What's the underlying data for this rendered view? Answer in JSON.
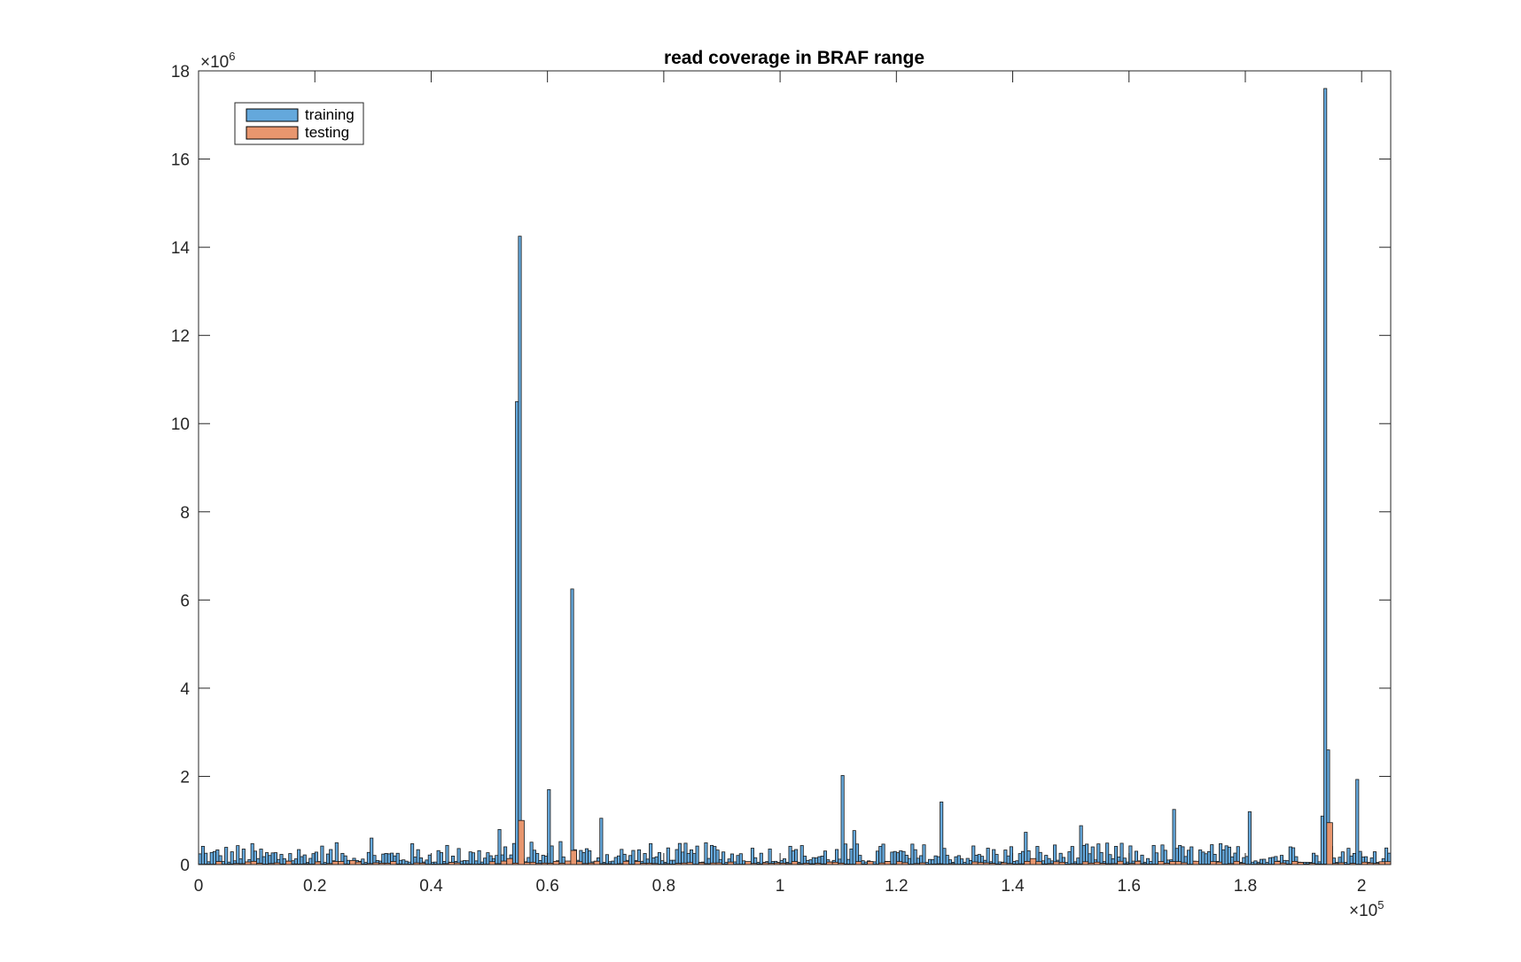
{
  "chart_data": {
    "type": "bar",
    "title": "read coverage in BRAF range",
    "xlabel": "",
    "ylabel": "",
    "x_multiplier": "×10",
    "x_multiplier_exp": "5",
    "y_multiplier": "×10",
    "y_multiplier_exp": "6",
    "xlim": [
      0,
      205000
    ],
    "ylim": [
      0,
      18
    ],
    "x_ticks": [
      0,
      0.2,
      0.4,
      0.6,
      0.8,
      1,
      1.2,
      1.4,
      1.6,
      1.8,
      2
    ],
    "x_tick_labels": [
      "0",
      "0.2",
      "0.4",
      "0.6",
      "0.8",
      "1",
      "1.2",
      "1.4",
      "1.6",
      "1.8",
      "2"
    ],
    "y_ticks": [
      0,
      2,
      4,
      6,
      8,
      10,
      12,
      14,
      16,
      18
    ],
    "y_tick_labels": [
      "0",
      "2",
      "4",
      "6",
      "8",
      "10",
      "12",
      "14",
      "16",
      "18"
    ],
    "legend_position": "top-left",
    "series": [
      {
        "name": "training",
        "color": "#64a8dc",
        "peaks": [
          {
            "x": 54700,
            "y": 10.5
          },
          {
            "x": 55200,
            "y": 14.25
          },
          {
            "x": 60200,
            "y": 1.7
          },
          {
            "x": 64100,
            "y": 6.25
          },
          {
            "x": 68800,
            "y": 1.05
          },
          {
            "x": 110700,
            "y": 2.02
          },
          {
            "x": 127600,
            "y": 1.42
          },
          {
            "x": 167400,
            "y": 1.25
          },
          {
            "x": 180700,
            "y": 1.2
          },
          {
            "x": 192800,
            "y": 1.1
          },
          {
            "x": 193400,
            "y": 17.6
          },
          {
            "x": 193900,
            "y": 2.6
          },
          {
            "x": 198900,
            "y": 1.93
          }
        ],
        "background_level": 0.25
      },
      {
        "name": "testing",
        "color": "#e8966e",
        "peaks": [
          {
            "x": 54800,
            "y": 1.0
          },
          {
            "x": 63900,
            "y": 0.32
          },
          {
            "x": 193600,
            "y": 0.95
          }
        ],
        "background_level": 0.04
      }
    ]
  }
}
